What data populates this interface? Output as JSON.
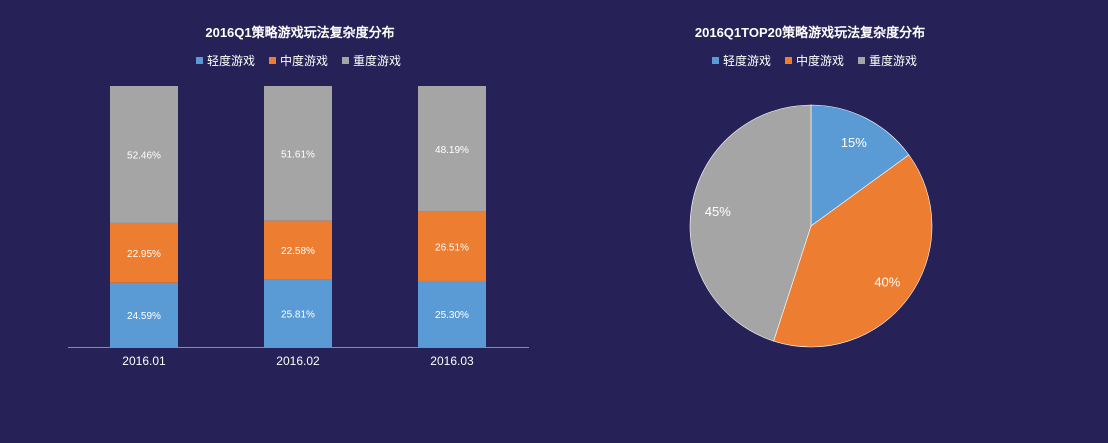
{
  "colors": {
    "light": "#5b9bd5",
    "medium": "#ed7d31",
    "heavy": "#a5a5a5",
    "background": "#262156",
    "axis": "#8a88a8"
  },
  "chart_data": [
    {
      "type": "bar",
      "stacked": true,
      "title": "2016Q1策略游戏玩法复杂度分布",
      "categories": [
        "2016.01",
        "2016.02",
        "2016.03"
      ],
      "series": [
        {
          "name": "轻度游戏",
          "values": [
            24.59,
            25.81,
            25.3
          ],
          "labels": [
            "24.59%",
            "25.81%",
            "25.30%"
          ],
          "color": "#5b9bd5"
        },
        {
          "name": "中度游戏",
          "values": [
            22.95,
            22.58,
            26.51
          ],
          "labels": [
            "22.95%",
            "22.58%",
            "26.51%"
          ],
          "color": "#ed7d31"
        },
        {
          "name": "重度游戏",
          "values": [
            52.46,
            51.61,
            48.19
          ],
          "labels": [
            "52.46%",
            "51.61%",
            "48.19%"
          ],
          "color": "#a5a5a5"
        }
      ],
      "ylim": [
        0,
        100
      ],
      "legend": "top-center",
      "grid": false
    },
    {
      "type": "pie",
      "title": "2016Q1TOP20策略游戏玩法复杂度分布",
      "slices": [
        {
          "name": "轻度游戏",
          "value": 15,
          "label": "15%",
          "color": "#5b9bd5"
        },
        {
          "name": "中度游戏",
          "value": 40,
          "label": "40%",
          "color": "#ed7d31"
        },
        {
          "name": "重度游戏",
          "value": 45,
          "label": "45%",
          "color": "#a5a5a5"
        }
      ],
      "legend": "top-center"
    }
  ]
}
